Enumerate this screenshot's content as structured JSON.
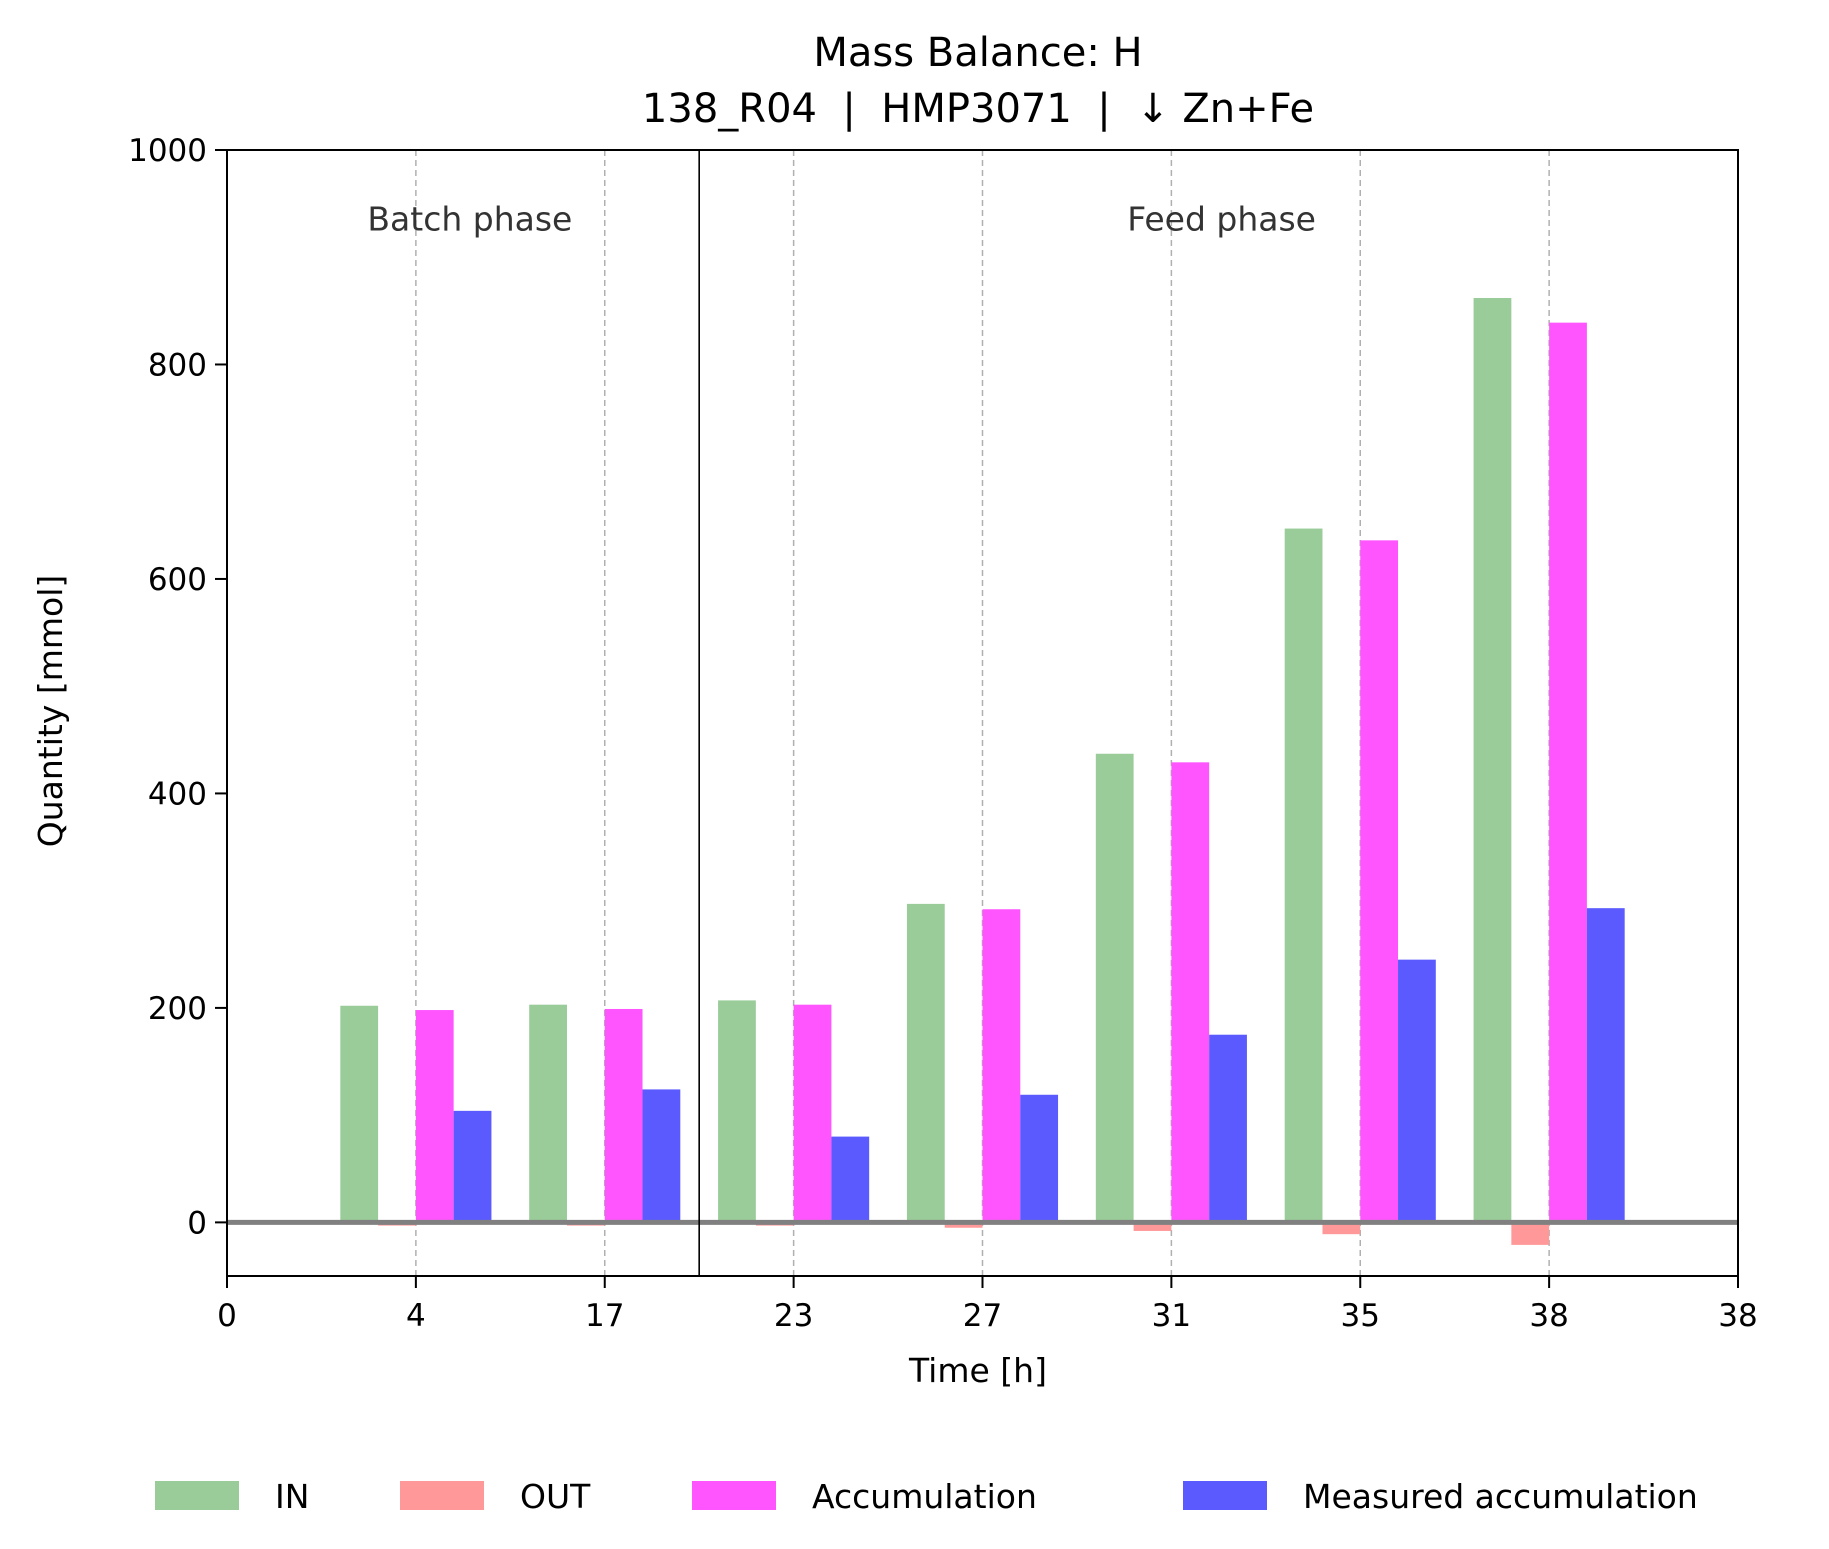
{
  "chart_data": {
    "type": "bar",
    "title": "Mass Balance: H",
    "subtitle": "138_R04  |  HMP3071  |  ↓ Zn+Fe",
    "xlabel": "Time [h]",
    "ylabel": "Quantity [mmol]",
    "ylim": [
      -50,
      1000
    ],
    "yticks": [
      0,
      200,
      400,
      600,
      800,
      1000
    ],
    "xtick_labels": [
      "0",
      "4",
      "17",
      "23",
      "27",
      "31",
      "35",
      "38",
      "38"
    ],
    "categories": [
      "4",
      "17",
      "23",
      "27",
      "31",
      "35",
      "38"
    ],
    "series": [
      {
        "name": "IN",
        "color": "#99cc99",
        "values": [
          202,
          203,
          207,
          297,
          437,
          647,
          862
        ]
      },
      {
        "name": "OUT",
        "color": "#ff9999",
        "values": [
          -3,
          -3,
          -3,
          -5,
          -8,
          -11,
          -21
        ]
      },
      {
        "name": "Accumulation",
        "color": "#ff55ff",
        "values": [
          198,
          199,
          203,
          292,
          429,
          636,
          839
        ]
      },
      {
        "name": "Measured accumulation",
        "color": "#5a5aff",
        "values": [
          104,
          124,
          80,
          119,
          175,
          245,
          293
        ]
      }
    ],
    "phases": [
      "Batch phase",
      "Feed phase"
    ],
    "grid": "vertical dashed",
    "legend_position": "bottom"
  }
}
